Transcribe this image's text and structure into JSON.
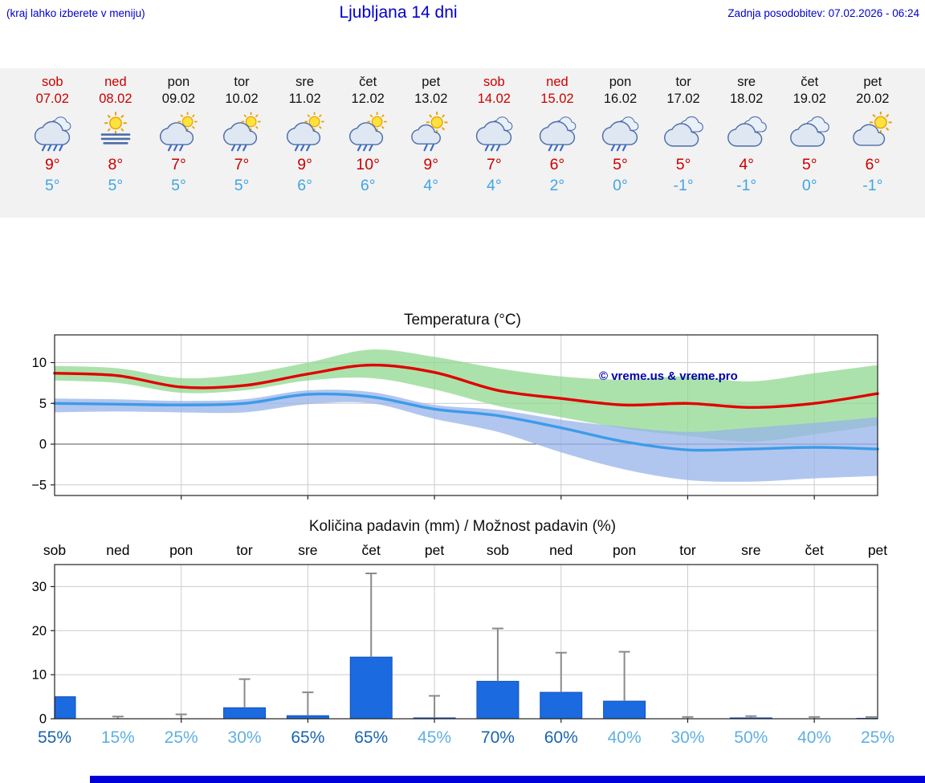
{
  "header": {
    "hint": "(kraj lahko izberete v meniju)",
    "title": "Ljubljana 14 dni",
    "updated": "Zadnja posodobitev: 07.02.2026 - 06:24"
  },
  "forecast": {
    "days": [
      {
        "name": "sob",
        "date": "07.02",
        "weekend": true,
        "icon": "heavy-rain-icon",
        "tmax": "9°",
        "tmin": "5°"
      },
      {
        "name": "ned",
        "date": "08.02",
        "weekend": true,
        "icon": "sun-fog-icon",
        "tmax": "8°",
        "tmin": "5°"
      },
      {
        "name": "pon",
        "date": "09.02",
        "weekend": false,
        "icon": "sun-rain-icon",
        "tmax": "7°",
        "tmin": "5°"
      },
      {
        "name": "tor",
        "date": "10.02",
        "weekend": false,
        "icon": "sun-rain-icon",
        "tmax": "7°",
        "tmin": "5°"
      },
      {
        "name": "sre",
        "date": "11.02",
        "weekend": false,
        "icon": "sun-rain-icon",
        "tmax": "9°",
        "tmin": "6°"
      },
      {
        "name": "čet",
        "date": "12.02",
        "weekend": false,
        "icon": "sun-rain-icon",
        "tmax": "10°",
        "tmin": "6°"
      },
      {
        "name": "pet",
        "date": "13.02",
        "weekend": false,
        "icon": "sun-light-rain-icon",
        "tmax": "9°",
        "tmin": "4°"
      },
      {
        "name": "sob",
        "date": "14.02",
        "weekend": true,
        "icon": "rain-icon",
        "tmax": "7°",
        "tmin": "4°"
      },
      {
        "name": "ned",
        "date": "15.02",
        "weekend": true,
        "icon": "rain-icon",
        "tmax": "6°",
        "tmin": "2°"
      },
      {
        "name": "pon",
        "date": "16.02",
        "weekend": false,
        "icon": "rain-icon",
        "tmax": "5°",
        "tmin": "0°"
      },
      {
        "name": "tor",
        "date": "17.02",
        "weekend": false,
        "icon": "cloudy-icon",
        "tmax": "5°",
        "tmin": "-1°"
      },
      {
        "name": "sre",
        "date": "18.02",
        "weekend": false,
        "icon": "cloudy-icon",
        "tmax": "4°",
        "tmin": "-1°"
      },
      {
        "name": "čet",
        "date": "19.02",
        "weekend": false,
        "icon": "cloudy-icon",
        "tmax": "5°",
        "tmin": "0°"
      },
      {
        "name": "pet",
        "date": "20.02",
        "weekend": false,
        "icon": "partly-cloudy-icon",
        "tmax": "6°",
        "tmin": "-1°"
      }
    ]
  },
  "chart_data": [
    {
      "type": "line",
      "title": "Temperatura (°C)",
      "watermark": "© vreme.us & vreme.pro",
      "categories": [
        "sob 07.02",
        "ned 08.02",
        "pon 09.02",
        "tor 10.02",
        "sre 11.02",
        "čet 12.02",
        "pet 13.02",
        "sob 14.02",
        "ned 15.02",
        "pon 16.02",
        "tor 17.02",
        "sre 18.02",
        "čet 19.02",
        "pet 20.02"
      ],
      "ylim": [
        -6.3,
        13.4
      ],
      "yticks": [
        -5,
        0,
        5,
        10
      ],
      "grid": true,
      "series": [
        {
          "name": "max-temp",
          "color": "#e10000",
          "values": [
            8.7,
            8.4,
            7.0,
            7.2,
            8.6,
            9.7,
            8.8,
            6.6,
            5.6,
            4.8,
            5.0,
            4.5,
            5.0,
            6.2
          ]
        },
        {
          "name": "min-temp",
          "color": "#3d9be9",
          "values": [
            5.0,
            4.9,
            4.8,
            5.0,
            6.1,
            5.8,
            4.3,
            3.5,
            2.0,
            0.3,
            -0.7,
            -0.6,
            -0.4,
            -0.6
          ]
        }
      ],
      "bands": [
        {
          "name": "max-range",
          "color": "#8fd88f",
          "opacity": 0.75,
          "upper": [
            9.6,
            9.3,
            8.1,
            8.6,
            10.0,
            11.6,
            10.7,
            9.3,
            8.3,
            7.9,
            8.3,
            7.7,
            8.7,
            9.7
          ],
          "lower": [
            7.8,
            7.5,
            6.3,
            6.6,
            7.8,
            8.1,
            6.7,
            4.7,
            3.3,
            1.9,
            1.0,
            0.3,
            1.2,
            2.3
          ]
        },
        {
          "name": "min-range",
          "color": "#97b3ea",
          "opacity": 0.75,
          "upper": [
            5.6,
            5.5,
            5.3,
            5.5,
            6.6,
            6.4,
            4.8,
            4.2,
            3.0,
            2.1,
            1.5,
            2.0,
            2.6,
            3.3
          ],
          "lower": [
            3.9,
            4.0,
            3.9,
            3.9,
            4.9,
            5.0,
            3.1,
            1.5,
            -1.0,
            -3.1,
            -4.4,
            -4.6,
            -4.2,
            -3.9
          ]
        }
      ]
    },
    {
      "type": "bar",
      "title": "Količina padavin (mm) / Možnost padavin (%)",
      "categories": [
        "sob",
        "ned",
        "pon",
        "tor",
        "sre",
        "čet",
        "pet",
        "sob",
        "ned",
        "pon",
        "tor",
        "sre",
        "čet",
        "pet"
      ],
      "values": [
        5.0,
        0,
        0,
        2.5,
        0.7,
        14,
        0.2,
        8.5,
        6,
        4,
        0,
        0.2,
        0,
        0.1
      ],
      "whisker_max": [
        5.0,
        0.5,
        1.0,
        9,
        6,
        33,
        5.2,
        20.5,
        15,
        15.2,
        0.4,
        0.6,
        0.4,
        0.4
      ],
      "probabilities": [
        55,
        15,
        25,
        30,
        65,
        65,
        45,
        70,
        60,
        40,
        30,
        50,
        40,
        25
      ],
      "ylim": [
        0,
        35
      ],
      "yticks": [
        0,
        10,
        20,
        30
      ],
      "grid": true
    }
  ],
  "colors": {
    "accent_blue": "#0000cc",
    "weekend_red": "#cc0000",
    "tmax_red": "#cc0000",
    "tmin_blue": "#3fa5e6",
    "bar_blue": "#1b6ae0",
    "bar_border": "#1352b8",
    "whisker_gray": "#8a8a8a",
    "prob_high": "#1a64ad",
    "prob_low": "#5fb0e0",
    "footer_blue": "#0000d8"
  }
}
